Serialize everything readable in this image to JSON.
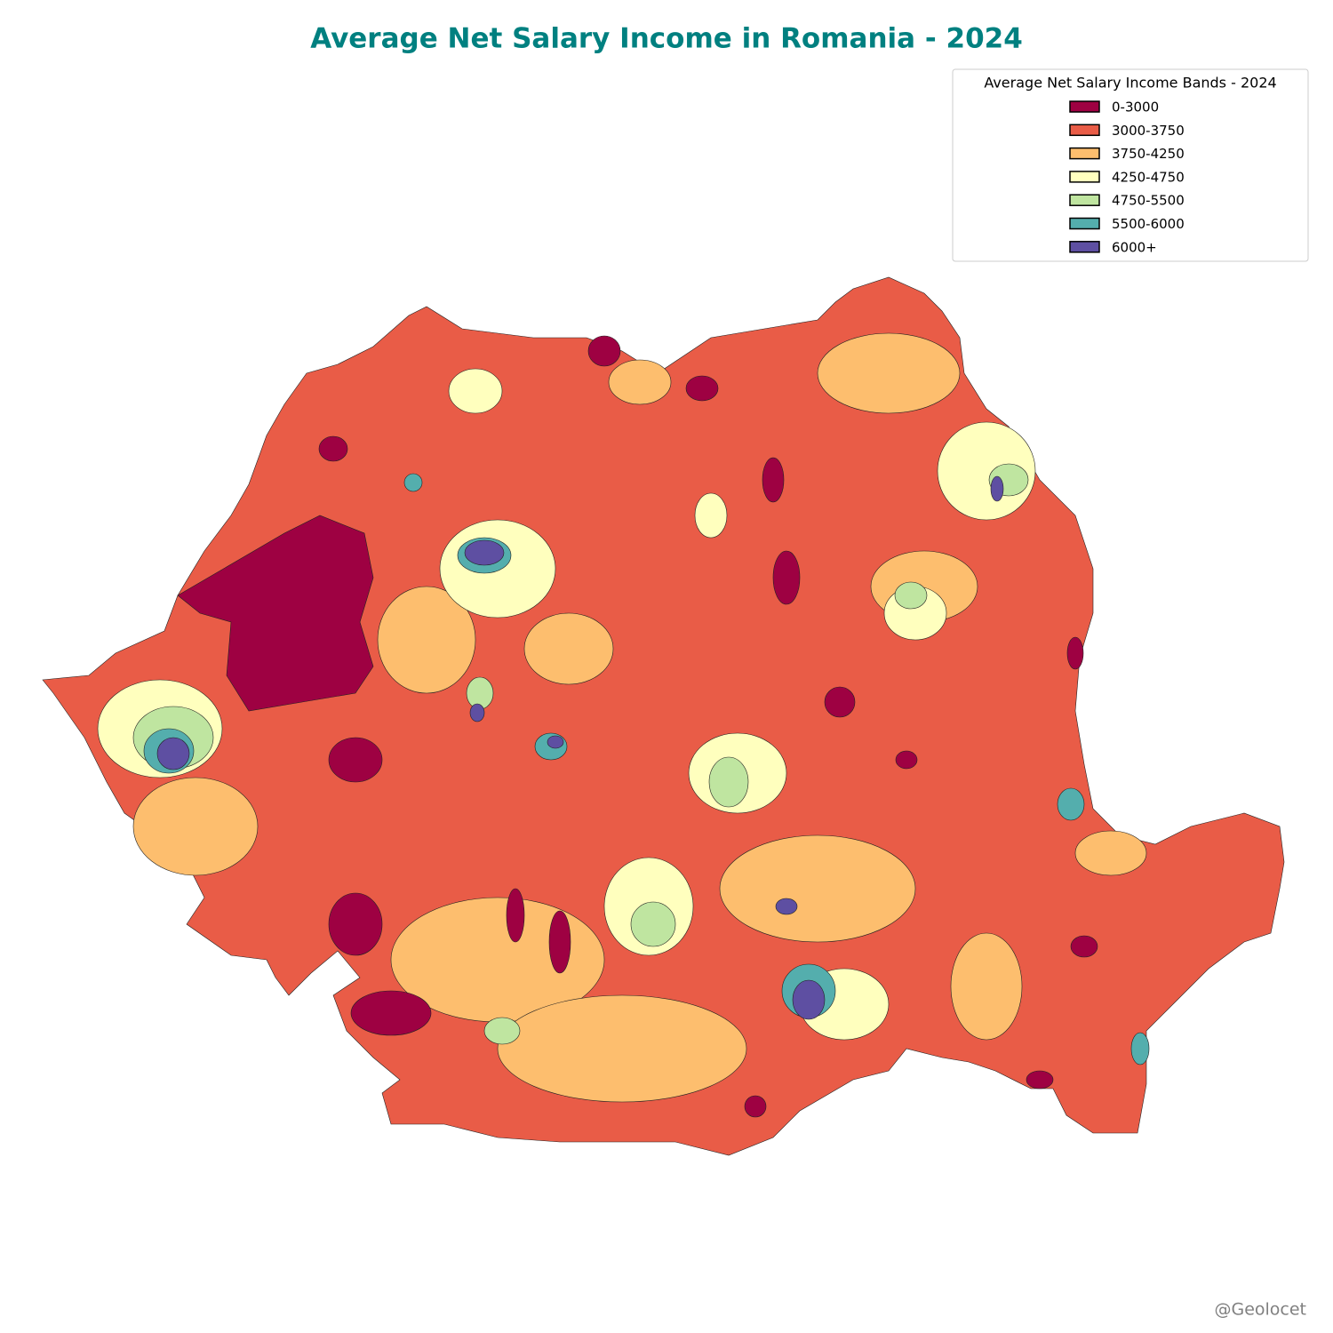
{
  "title": "Average Net Salary Income in Romania - 2024",
  "legend": {
    "title": "Average Net Salary Income Bands - 2024",
    "items": [
      {
        "label": "0-3000",
        "color": "#9e0142"
      },
      {
        "label": "3000-3750",
        "color": "#e95c47"
      },
      {
        "label": "3750-4250",
        "color": "#fdbe6e"
      },
      {
        "label": "4250-4750",
        "color": "#ffffbe"
      },
      {
        "label": "4750-5500",
        "color": "#bfe5a0"
      },
      {
        "label": "5500-6000",
        "color": "#54aead"
      },
      {
        "label": "6000+",
        "color": "#5e4fa2"
      }
    ]
  },
  "credit": "@Geolocet"
}
